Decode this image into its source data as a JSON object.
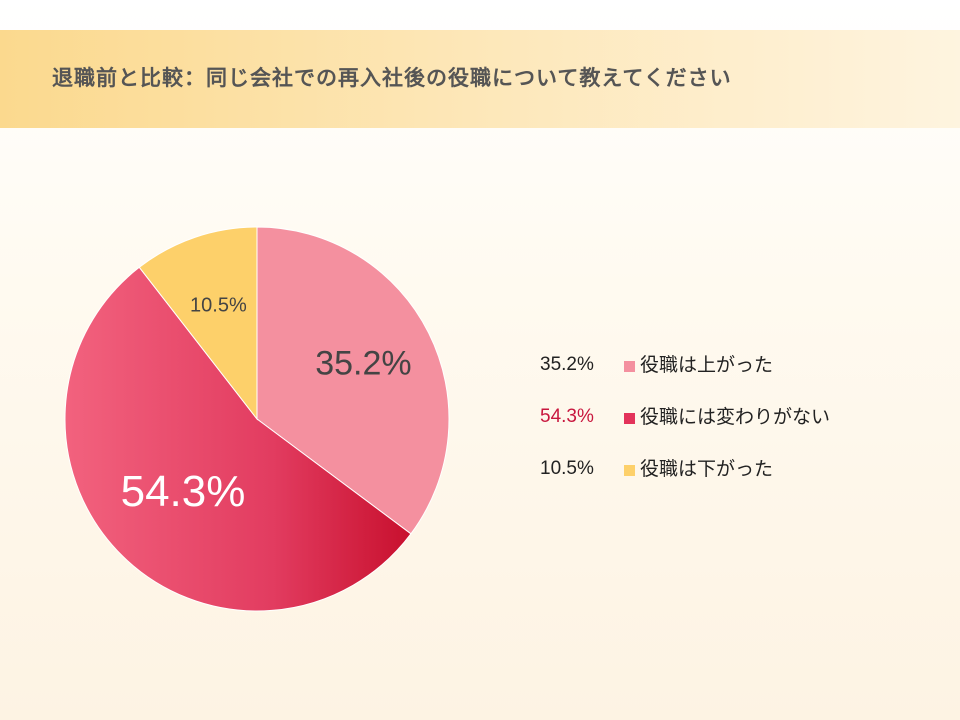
{
  "title": "退職前と比較：同じ会社での再入社後の役職について教えてください",
  "chart_data": {
    "type": "pie",
    "slices": [
      {
        "label": "役職は上がった",
        "value": 35.2,
        "display": "35.2%",
        "color": "#f4909f",
        "value_color": "#222222"
      },
      {
        "label": "役職には変わりがない",
        "value": 54.3,
        "display": "54.3%",
        "color": "#e3335a",
        "value_color": "#c8173e"
      },
      {
        "label": "役職は下がった",
        "value": 10.5,
        "display": "10.5%",
        "color": "#fdd06a",
        "value_color": "#222222"
      }
    ]
  }
}
